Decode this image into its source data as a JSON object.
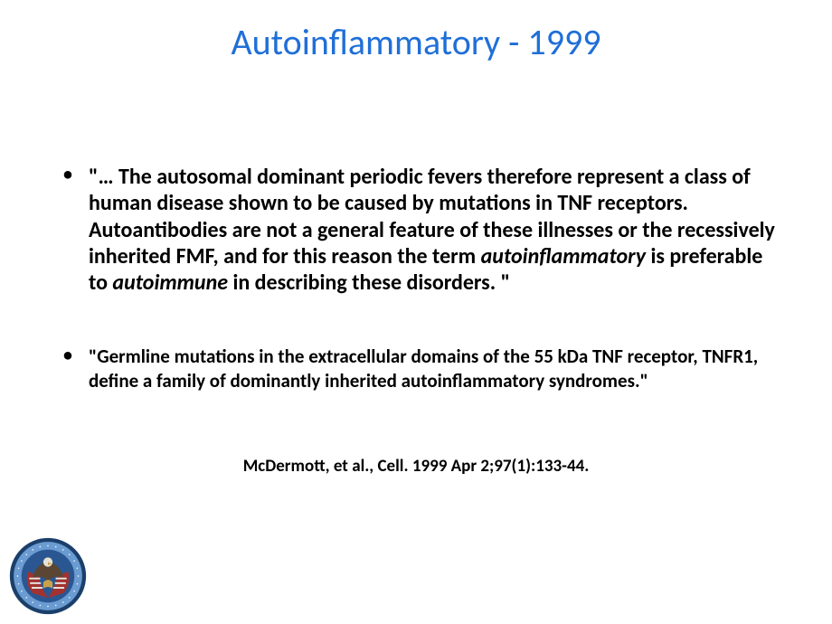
{
  "title": {
    "text": "Autoinflammatory - 1999",
    "color": "#1f6fd8",
    "fontsize": 40
  },
  "bullet1": {
    "pre": "\"…  The autosomal dominant periodic fevers therefore represent a class of human disease shown to be caused by mutations in TNF receptors. Autoantibodies are not a general feature of these illnesses or the recessively inherited FMF, and for this reason the term ",
    "em1": "autoinflammatory",
    "mid": " is preferable to ",
    "em2": "autoimmune",
    "post": " in describing these disorders. \"",
    "fontsize": 24,
    "lineheight": 1.22
  },
  "bullet2": {
    "text": "\"Germline mutations in the extracellular domains of the 55 kDa TNF receptor, TNFR1, define a family of dominantly inherited autoinflammatory syndromes.\"",
    "fontsize": 21,
    "lineheight": 1.25
  },
  "citation": {
    "text": "McDermott, et al., Cell. 1999 Apr 2;97(1):133-44.",
    "fontsize": 19
  },
  "seal": {
    "outer_color": "#1b3f6b",
    "ring_color": "#6a9bd1",
    "inner_color": "#2a5792",
    "flag_red": "#a2322f",
    "flag_white": "#e9e9e4",
    "eagle_body": "#5a4632",
    "eagle_head": "#e6e2d5",
    "gold": "#c9a24a",
    "text_color": "#e8eef7",
    "size": 86
  }
}
